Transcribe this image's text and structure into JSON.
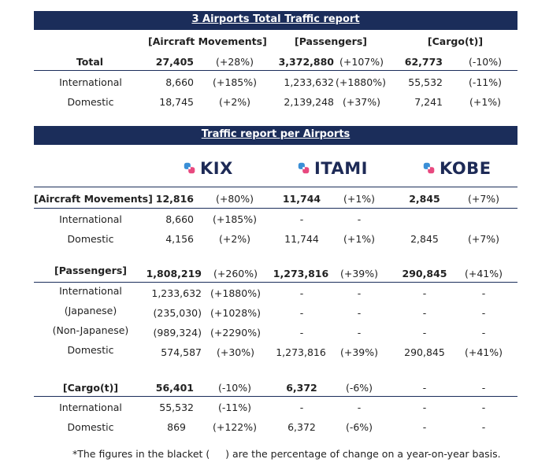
{
  "total_section": {
    "title": "3 Airports Total Traffic report",
    "headers": {
      "movements": "[Aircraft Movements]",
      "passengers": "[Passengers]",
      "cargo": "[Cargo(t)]"
    },
    "rows": [
      {
        "label": "Total",
        "mv": "27,405",
        "mv_pct": "(+28%)",
        "px": "3,372,880",
        "px_pct": "(+107%)",
        "cg": "62,773",
        "cg_pct": "(-10%)"
      },
      {
        "label": "International",
        "mv": "8,660",
        "mv_pct": "(+185%)",
        "px": "1,233,632",
        "px_pct": "(+1880%)",
        "cg": "55,532",
        "cg_pct": "(-11%)"
      },
      {
        "label": "Domestic",
        "mv": "18,745",
        "mv_pct": "(+2%)",
        "px": "2,139,248",
        "px_pct": "(+37%)",
        "cg": "7,241",
        "cg_pct": "(+1%)"
      }
    ]
  },
  "airports_section": {
    "title": "Traffic report per Airports",
    "logos": {
      "kix": "KIX",
      "itami": "ITAMI",
      "kobe": "KOBE"
    },
    "brand_colors": {
      "pink": "#e8497f",
      "blue": "#3a8fd6",
      "navy": "#1d2a56"
    },
    "movements": {
      "header": "[Aircraft Movements]",
      "total": {
        "kix": "12,816",
        "kix_pct": "(+80%)",
        "itami": "11,744",
        "itami_pct": "(+1%)",
        "kobe": "2,845",
        "kobe_pct": "(+7%)"
      },
      "international": {
        "label": "International",
        "kix": "8,660",
        "kix_pct": "(+185%)",
        "itami": "-",
        "itami_pct": "-",
        "kobe": "",
        "kobe_pct": ""
      },
      "domestic": {
        "label": "Domestic",
        "kix": "4,156",
        "kix_pct": "(+2%)",
        "itami": "11,744",
        "itami_pct": "(+1%)",
        "kobe": "2,845",
        "kobe_pct": "(+7%)"
      }
    },
    "passengers": {
      "header": "[Passengers]",
      "total": {
        "kix": "1,808,219",
        "kix_pct": "(+260%)",
        "itami": "1,273,816",
        "itami_pct": "(+39%)",
        "kobe": "290,845",
        "kobe_pct": "(+41%)"
      },
      "international": {
        "label": "International",
        "kix": "1,233,632",
        "kix_pct": "(+1880%)",
        "itami": "-",
        "itami_pct": "-",
        "kobe": "-",
        "kobe_pct": "-"
      },
      "japanese": {
        "label": "(Japanese)",
        "kix": "(235,030)",
        "kix_pct": "(+1028%)",
        "itami": "-",
        "itami_pct": "-",
        "kobe": "-",
        "kobe_pct": "-"
      },
      "non_japanese": {
        "label": "(Non-Japanese)",
        "kix": "(989,324)",
        "kix_pct": "(+2290%)",
        "itami": "-",
        "itami_pct": "-",
        "kobe": "-",
        "kobe_pct": "-"
      },
      "domestic": {
        "label": "Domestic",
        "kix": "574,587",
        "kix_pct": "(+30%)",
        "itami": "1,273,816",
        "itami_pct": "(+39%)",
        "kobe": "290,845",
        "kobe_pct": "(+41%)"
      }
    },
    "cargo": {
      "header": "[Cargo(t)]",
      "total": {
        "kix": "56,401",
        "kix_pct": "(-10%)",
        "itami": "6,372",
        "itami_pct": "(-6%)",
        "kobe": "-",
        "kobe_pct": "-"
      },
      "international": {
        "label": "International",
        "kix": "55,532",
        "kix_pct": "(-11%)",
        "itami": "-",
        "itami_pct": "-",
        "kobe": "-",
        "kobe_pct": "-"
      },
      "domestic": {
        "label": "Domestic",
        "kix": "869",
        "kix_pct": "(+122%)",
        "itami": "6,372",
        "itami_pct": "(-6%)",
        "kobe": "-",
        "kobe_pct": "-"
      }
    }
  },
  "footnote": "*The figures in the blacket (     ) are the percentage of change on a year-on-year basis."
}
